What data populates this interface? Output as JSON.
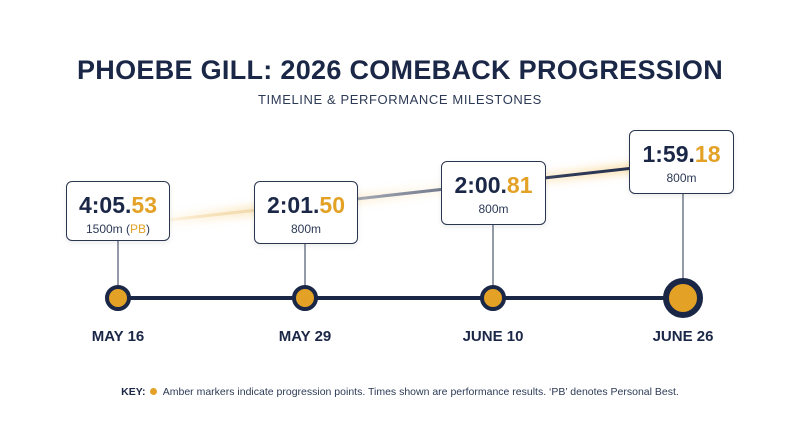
{
  "header": {
    "title": "PHOEBE GILL: 2026 COMEBACK PROGRESSION",
    "subtitle": "TIMELINE & PERFORMANCE MILESTONES"
  },
  "milestones": [
    {
      "date": "MAY 16",
      "time_main": "4:05.",
      "time_frac": "53",
      "event": "1500m",
      "note_open": " (",
      "note": "PB",
      "note_close": ")"
    },
    {
      "date": "MAY 29",
      "time_main": "2:01.",
      "time_frac": "50",
      "event": "800m"
    },
    {
      "date": "JUNE 10",
      "time_main": "2:00.",
      "time_frac": "81",
      "event": "800m"
    },
    {
      "date": "JUNE 26",
      "time_main": "1:59.",
      "time_frac": "18",
      "event": "800m"
    }
  ],
  "key": {
    "label": "KEY:",
    "text": "Amber markers indicate progression points. Times shown are performance results. ‘PB’ denotes Personal Best."
  },
  "colors": {
    "navy": "#1b2747",
    "amber": "#e3a126"
  }
}
